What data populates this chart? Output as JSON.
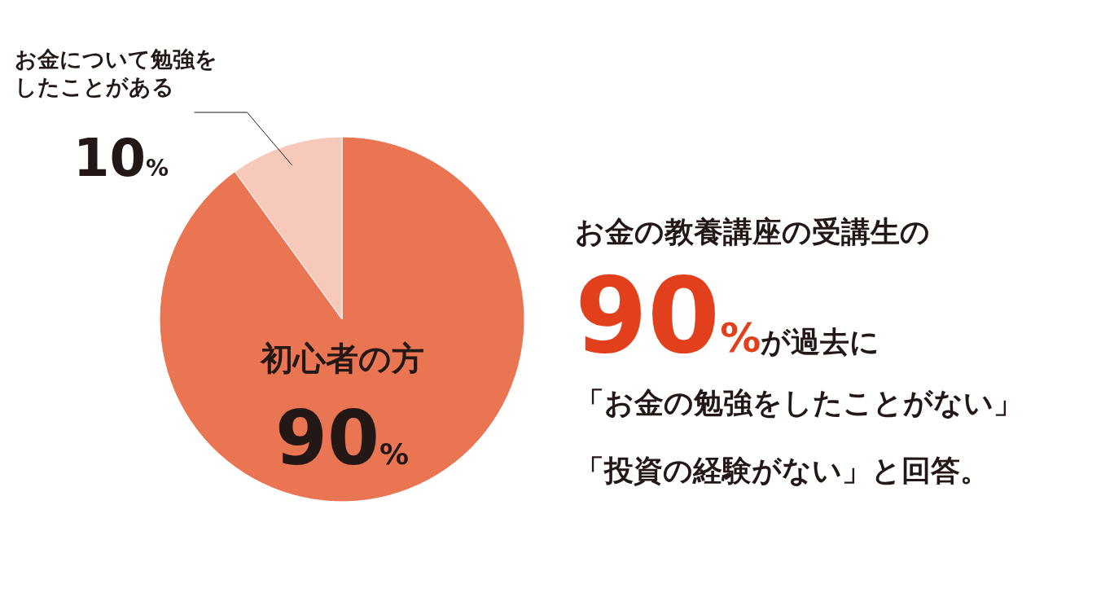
{
  "chart_data": {
    "type": "pie",
    "categories": [
      "初心者の方",
      "お金について勉強をしたことがある"
    ],
    "values": [
      90,
      10
    ],
    "colors": [
      "#ea7553",
      "#f7c9bb"
    ],
    "value_labels": [
      "90%",
      "10%"
    ],
    "annotations": [
      "お金の教養講座の受講生の",
      "90%が過去に",
      "「お金の勉強をしたことがない」",
      "「投資の経験がない」と回答。"
    ]
  }
}
